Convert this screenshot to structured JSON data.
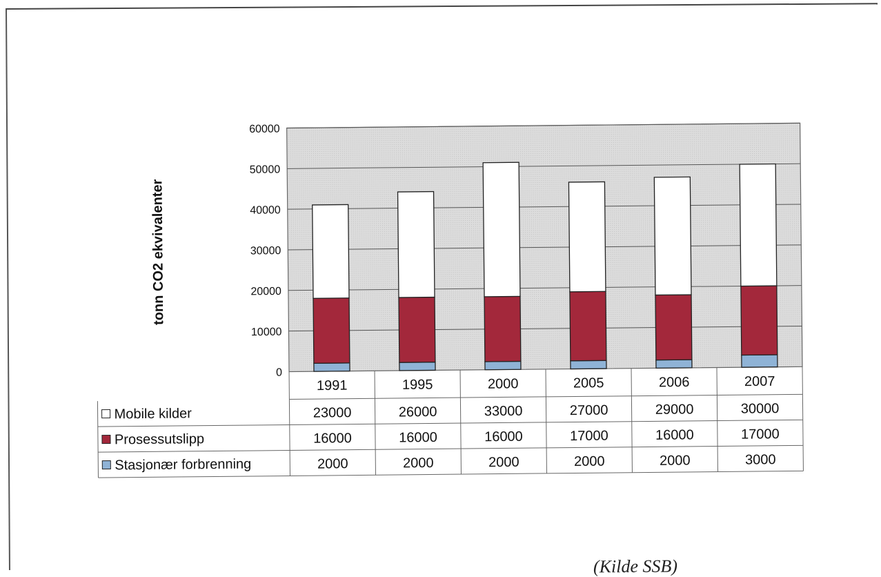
{
  "caption": "(Kilde SSB)",
  "chart_data": {
    "type": "bar",
    "stacked": true,
    "ylabel": "tonn CO2 ekvivalenter",
    "ylim": [
      0,
      60000
    ],
    "yticks": [
      "0",
      "10000",
      "20000",
      "30000",
      "40000",
      "50000",
      "60000"
    ],
    "categories": [
      "1991",
      "1995",
      "2000",
      "2005",
      "2006",
      "2007"
    ],
    "grid": true,
    "legend": "data-table",
    "series": [
      {
        "name": "Stasjonær forbrenning",
        "color": "#8fb3d6",
        "values": [
          2000,
          2000,
          2000,
          2000,
          2000,
          3000
        ]
      },
      {
        "name": "Prosessutslipp",
        "color": "#a3283b",
        "values": [
          16000,
          16000,
          16000,
          17000,
          16000,
          17000
        ]
      },
      {
        "name": "Mobile kilder",
        "color": "#ffffff",
        "values": [
          23000,
          26000,
          33000,
          27000,
          29000,
          30000
        ]
      }
    ],
    "table_rows": [
      "Mobile kilder",
      "Prosessutslipp",
      "Stasjonær forbrenning"
    ]
  }
}
